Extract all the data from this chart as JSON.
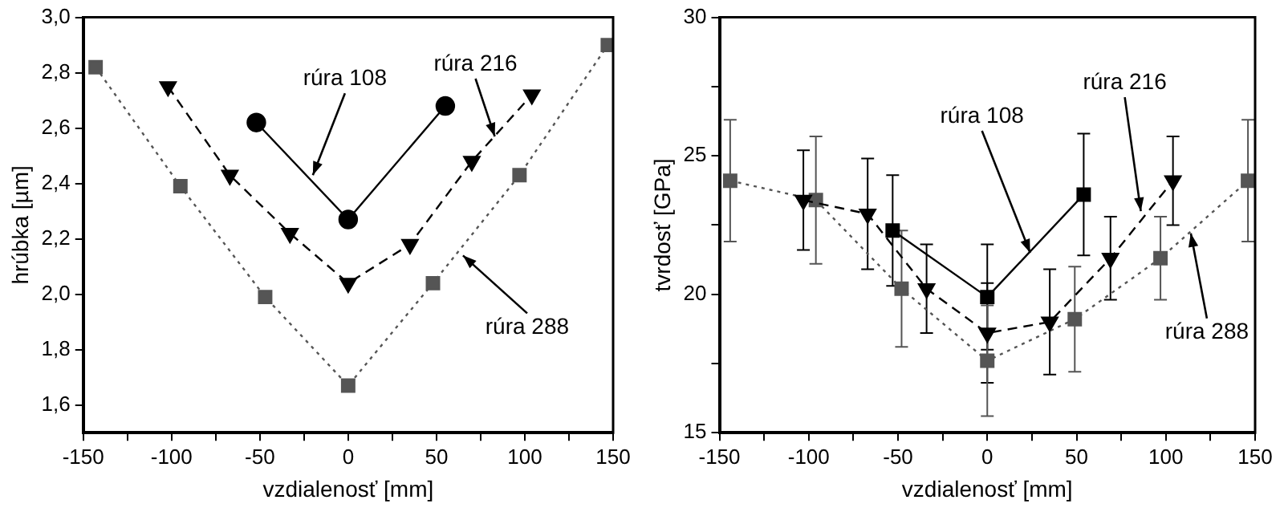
{
  "chart_data": [
    {
      "type": "line",
      "xlabel": "vzdialenosť [mm]",
      "ylabel": "hrúbka [µm]",
      "xlim": [
        -150,
        150
      ],
      "ylim": [
        1.5,
        3.0
      ],
      "xticks": [
        -150,
        {
          "value": -125,
          "label": null
        },
        -100,
        {
          "value": -75,
          "label": null
        },
        -50,
        {
          "value": -25,
          "label": null
        },
        0,
        {
          "value": 25,
          "label": null
        },
        50,
        {
          "value": 75,
          "label": null
        },
        100,
        {
          "value": 125,
          "label": null
        },
        150
      ],
      "yticks": [
        {
          "value": 1.6,
          "label": "1,6"
        },
        {
          "value": 1.8,
          "label": "1,8"
        },
        {
          "value": 2.0,
          "label": "2,0"
        },
        {
          "value": 2.2,
          "label": "2,2"
        },
        {
          "value": 2.4,
          "label": "2,4"
        },
        {
          "value": 2.6,
          "label": "2,6"
        },
        {
          "value": 2.8,
          "label": "2,8"
        },
        {
          "value": 3.0,
          "label": "3,0"
        }
      ],
      "grid": false,
      "legend": false,
      "series": [
        {
          "color": "#000000",
          "marker": "circle",
          "line_style": "solid",
          "x": [
            -52,
            0,
            55
          ],
          "values": [
            2.62,
            2.27,
            2.68
          ]
        },
        {
          "color": "#000000",
          "marker": "triangle",
          "line_style": "dashed",
          "x": [
            -102,
            -67,
            -33,
            0,
            35,
            70,
            104
          ],
          "values": [
            2.75,
            2.43,
            2.22,
            2.04,
            2.18,
            2.48,
            2.72
          ]
        },
        {
          "color": "#555555",
          "marker": "square",
          "line_style": "dotted",
          "x": [
            -143,
            -95,
            -47,
            0,
            48,
            97,
            147
          ],
          "values": [
            2.82,
            2.39,
            1.99,
            1.67,
            2.04,
            2.43,
            2.9
          ]
        }
      ],
      "annotations": [
        {
          "text": "rúra 108",
          "x": -20,
          "y": 2.43
        },
        {
          "text": "rúra 216",
          "x": 83,
          "y": 2.57
        },
        {
          "text": "rúra 288",
          "x": 65,
          "y": 2.14
        }
      ]
    },
    {
      "type": "line",
      "xlabel": "vzdialenosť [mm]",
      "ylabel": "tvrdosť [GPa]",
      "xlim": [
        -150,
        150
      ],
      "ylim": [
        15,
        30
      ],
      "xticks": [
        -150,
        {
          "value": -125,
          "label": null
        },
        -100,
        {
          "value": -75,
          "label": null
        },
        -50,
        {
          "value": -25,
          "label": null
        },
        0,
        {
          "value": 25,
          "label": null
        },
        50,
        {
          "value": 75,
          "label": null
        },
        100,
        {
          "value": 125,
          "label": null
        },
        150
      ],
      "yticks": [
        15,
        {
          "value": 17.5,
          "label": null
        },
        20,
        {
          "value": 22.5,
          "label": null
        },
        25,
        {
          "value": 27.5,
          "label": null
        },
        30
      ],
      "grid": false,
      "legend": false,
      "series": [
        {
          "color": "#000000",
          "marker": "square",
          "line_style": "solid",
          "x": [
            -53,
            0,
            54
          ],
          "values": [
            22.3,
            19.9,
            23.6
          ],
          "errors": [
            2,
            1.9,
            2.2
          ]
        },
        {
          "color": "#000000",
          "marker": "triangle",
          "line_style": "dashed",
          "x": [
            -103,
            -67,
            -34,
            0,
            35,
            69,
            104
          ],
          "values": [
            23.4,
            22.9,
            20.2,
            18.6,
            19.0,
            21.3,
            24.1
          ],
          "errors": [
            1.8,
            2.0,
            1.6,
            1.8,
            1.9,
            1.5,
            1.6
          ]
        },
        {
          "color": "#555555",
          "marker": "square",
          "line_style": "dotted",
          "x": [
            -144,
            -96,
            -48,
            0,
            49,
            97,
            146
          ],
          "values": [
            24.1,
            23.4,
            20.2,
            17.6,
            19.1,
            21.3,
            24.1
          ],
          "errors": [
            2.2,
            2.3,
            2.1,
            2.0,
            1.9,
            1.5,
            2.2
          ]
        }
      ],
      "annotations": [
        {
          "text": "rúra 108",
          "x": 24,
          "y": 21.5
        },
        {
          "text": "rúra 216",
          "x": 86,
          "y": 23.0
        },
        {
          "text": "rúra 288",
          "x": 114,
          "y": 22.2
        }
      ]
    }
  ]
}
